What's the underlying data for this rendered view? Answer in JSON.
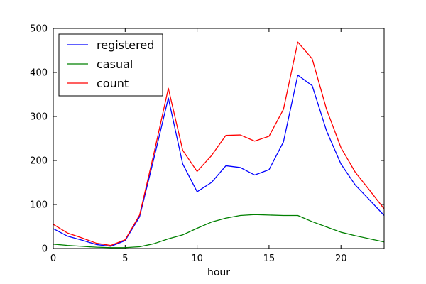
{
  "chart_data": {
    "type": "line",
    "title": "",
    "xlabel": "hour",
    "ylabel": "",
    "xlim": [
      0,
      23
    ],
    "ylim": [
      0,
      500
    ],
    "xticks": [
      0,
      5,
      10,
      15,
      20
    ],
    "yticks": [
      0,
      100,
      200,
      300,
      400,
      500
    ],
    "grid": false,
    "legend": "top-left",
    "x": [
      0,
      1,
      2,
      3,
      4,
      5,
      6,
      7,
      8,
      9,
      10,
      11,
      12,
      13,
      14,
      15,
      16,
      17,
      18,
      19,
      20,
      21,
      22,
      23
    ],
    "series": [
      {
        "name": "registered",
        "color": "#0000ff",
        "values": [
          45,
          28,
          19,
          9,
          5,
          18,
          72,
          205,
          342,
          192,
          129,
          150,
          188,
          184,
          167,
          179,
          242,
          394,
          370,
          267,
          192,
          144,
          110,
          75
        ]
      },
      {
        "name": "casual",
        "color": "#008000",
        "values": [
          10,
          7,
          5,
          3,
          2,
          2,
          4,
          11,
          22,
          31,
          46,
          60,
          69,
          75,
          77,
          76,
          75,
          75,
          61,
          49,
          37,
          29,
          22,
          15
        ]
      },
      {
        "name": "count",
        "color": "#ff0000",
        "values": [
          55,
          35,
          24,
          12,
          7,
          20,
          76,
          216,
          364,
          223,
          175,
          211,
          257,
          258,
          244,
          255,
          316,
          469,
          431,
          316,
          229,
          173,
          132,
          90
        ]
      }
    ]
  }
}
